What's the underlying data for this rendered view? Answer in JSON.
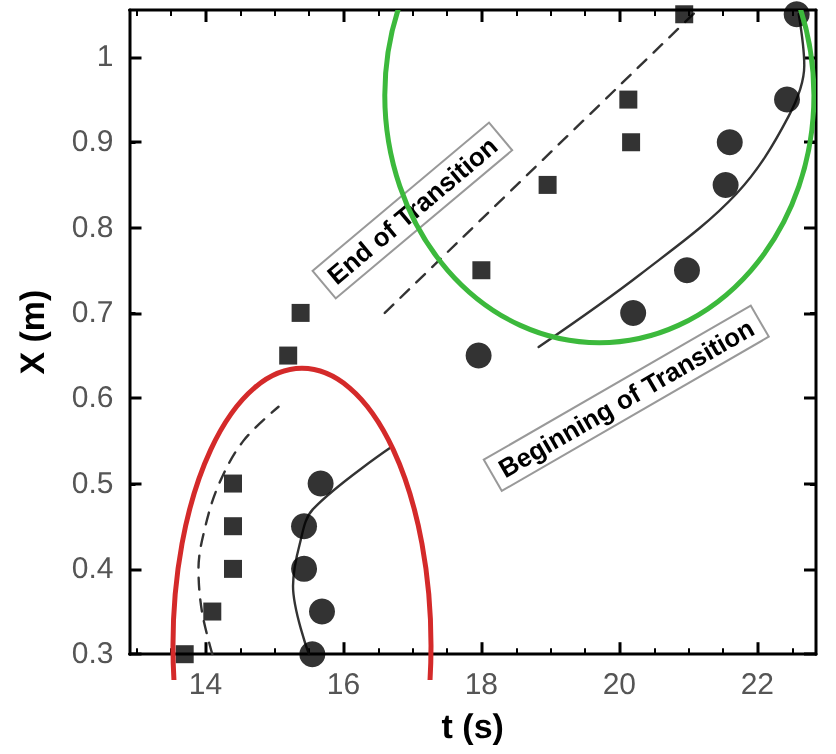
{
  "chart_data": {
    "type": "scatter",
    "xlabel": "t (s)",
    "ylabel": "X (m)",
    "xlim": [
      12.9,
      22.85
    ],
    "ylim": [
      0.3,
      1.055
    ],
    "xticks": [
      14,
      16,
      18,
      20,
      22
    ],
    "yticks": [
      0.3,
      0.4,
      0.5,
      0.6,
      0.7,
      0.8,
      0.9,
      1
    ],
    "grid": false,
    "annotations": [
      "End of Transition",
      "Beginning of Transition"
    ],
    "series": [
      {
        "marker": "square",
        "color": "#000000",
        "x": [
          13.7,
          14.1,
          14.4,
          14.4,
          14.4,
          15.2,
          15.38,
          18,
          18.96,
          20.17,
          20.13,
          20.94
        ],
        "values": [
          0.3,
          0.35,
          0.4,
          0.45,
          0.5,
          0.65,
          0.7,
          0.75,
          0.85,
          0.9,
          0.95,
          1.05
        ]
      },
      {
        "marker": "circle",
        "color": "#000000",
        "x": [
          15.55,
          15.69,
          15.43,
          15.43,
          15.67,
          17.96,
          20.2,
          20.98,
          21.54,
          21.6,
          22.43,
          22.57
        ],
        "values": [
          0.3,
          0.35,
          0.4,
          0.45,
          0.5,
          0.65,
          0.7,
          0.75,
          0.85,
          0.9,
          0.95,
          1.05
        ]
      },
      {
        "type": "line",
        "marker": "none",
        "line_style": "dashed",
        "color": "#333333",
        "x": [
          14.1,
          13.95,
          13.9,
          14.0,
          14.2,
          14.55,
          15.06,
          15.8,
          16.6,
          21.12
        ],
        "values": [
          0.3,
          0.35,
          0.4,
          0.45,
          0.5,
          0.55,
          0.59,
          null,
          0.7,
          1.054
        ]
      },
      {
        "type": "line",
        "marker": "none",
        "line_style": "solid",
        "color": "#333333",
        "x": [
          15.5,
          15.27,
          15.37,
          15.56,
          16.7,
          17.8,
          18.83,
          20.3,
          21.7,
          22.45,
          22.68,
          22.6
        ],
        "values": [
          0.3,
          0.38,
          0.43,
          0.47,
          0.543,
          null,
          0.66,
          0.745,
          0.84,
          0.93,
          0.99,
          1.05
        ]
      }
    ]
  }
}
